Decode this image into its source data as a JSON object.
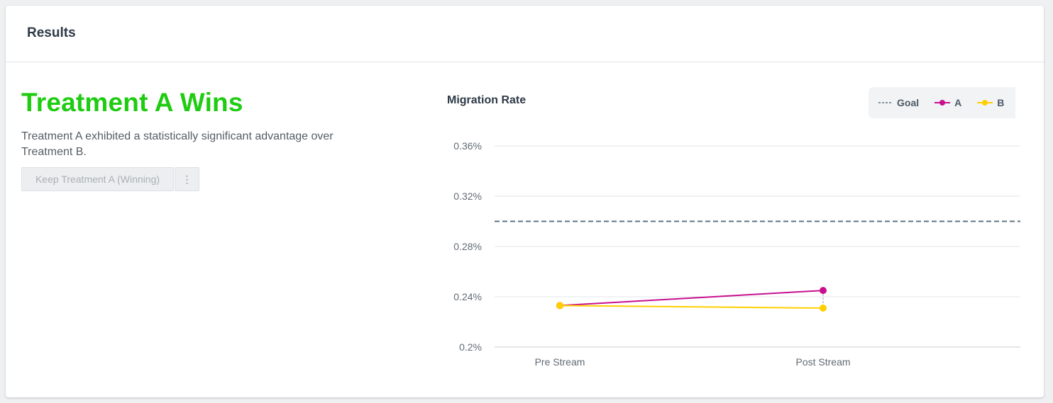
{
  "header": {
    "title": "Results"
  },
  "result": {
    "title": "Treatment A Wins",
    "description": "Treatment A exhibited a statistically significant advantage over Treatment B.",
    "keep_button_label": "Keep Treatment A (Winning)",
    "more_button_label": "⋮"
  },
  "colors": {
    "winner": "#1fcc12",
    "series_a": "#c8108f",
    "series_b": "#ffd000",
    "goal": "#5f7482",
    "grid": "#e3e6e9"
  },
  "chart_data": {
    "type": "line",
    "title": "Migration Rate",
    "categories": [
      "Pre Stream",
      "Post Stream"
    ],
    "y_ticks": [
      "0.2%",
      "0.24%",
      "0.28%",
      "0.32%",
      "0.36%"
    ],
    "ylim": [
      0.2,
      0.36
    ],
    "goal": 0.3,
    "legend": [
      "Goal",
      "A",
      "B"
    ],
    "legend_position": "top-right",
    "series": [
      {
        "name": "A",
        "values": [
          0.233,
          0.245
        ]
      },
      {
        "name": "B",
        "values": [
          0.233,
          0.231
        ]
      }
    ]
  }
}
